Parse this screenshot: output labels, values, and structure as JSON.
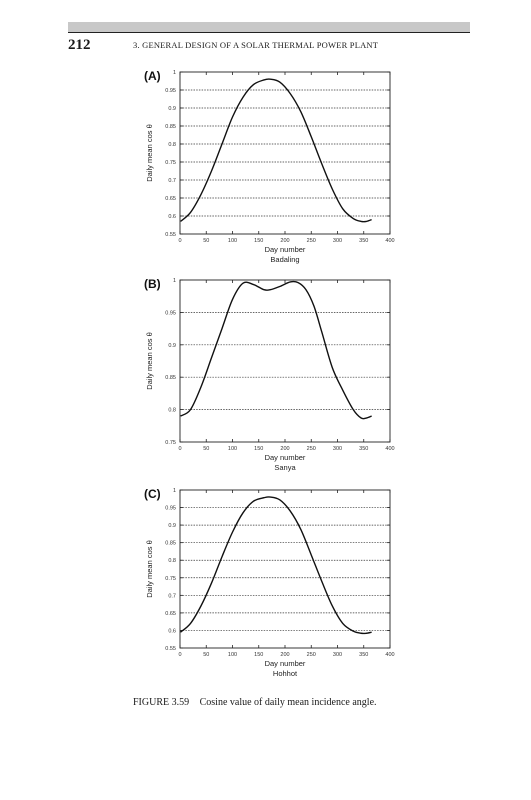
{
  "page": {
    "number": "212",
    "running_head": "3. GENERAL DESIGN OF A SOLAR THERMAL POWER PLANT"
  },
  "figure": {
    "caption_label": "FIGURE 3.59",
    "caption_text": "Cosine value of daily mean incidence angle."
  },
  "colors": {
    "curve": "#111111",
    "axis": "#222222",
    "grid": "#333333"
  },
  "chart_data": [
    {
      "type": "line",
      "panel_label": "(A)",
      "title": "Badaling",
      "xlabel": "Day number",
      "ylabel": "Daily mean cos θ",
      "xlim": [
        0,
        400
      ],
      "ylim": [
        0.55,
        1
      ],
      "xticks": [
        0,
        50,
        100,
        150,
        200,
        250,
        300,
        350,
        400
      ],
      "yticks": [
        "0.55",
        "0.6",
        "0.65",
        "0.7",
        "0.75",
        "0.8",
        "0.85",
        "0.9",
        "0.95",
        "1"
      ],
      "grid": true,
      "series": [
        {
          "x": [
            1,
            20,
            40,
            60,
            80,
            100,
            120,
            140,
            160,
            172,
            190,
            210,
            230,
            250,
            270,
            290,
            310,
            330,
            345,
            355,
            365
          ],
          "y": [
            0.585,
            0.61,
            0.66,
            0.725,
            0.8,
            0.875,
            0.93,
            0.965,
            0.978,
            0.98,
            0.972,
            0.94,
            0.89,
            0.82,
            0.745,
            0.675,
            0.62,
            0.593,
            0.585,
            0.585,
            0.59
          ]
        }
      ]
    },
    {
      "type": "line",
      "panel_label": "(B)",
      "title": "Sanya",
      "xlabel": "Day number",
      "ylabel": "Daily mean cos θ",
      "xlim": [
        0,
        400
      ],
      "ylim": [
        0.75,
        1
      ],
      "xticks": [
        0,
        50,
        100,
        150,
        200,
        250,
        300,
        350,
        400
      ],
      "yticks": [
        "0.75",
        "0.8",
        "0.85",
        "0.9",
        "0.95",
        "1"
      ],
      "grid": true,
      "series": [
        {
          "x": [
            1,
            20,
            40,
            60,
            80,
            100,
            120,
            140,
            160,
            172,
            190,
            210,
            225,
            240,
            255,
            270,
            290,
            310,
            330,
            345,
            355,
            365
          ],
          "y": [
            0.79,
            0.8,
            0.835,
            0.88,
            0.925,
            0.97,
            0.995,
            0.993,
            0.985,
            0.985,
            0.99,
            0.997,
            0.996,
            0.985,
            0.96,
            0.92,
            0.865,
            0.83,
            0.8,
            0.787,
            0.787,
            0.79
          ]
        }
      ]
    },
    {
      "type": "line",
      "panel_label": "(C)",
      "title": "Hohhot",
      "xlabel": "Day number",
      "ylabel": "Daily mean cos θ",
      "xlim": [
        0,
        400
      ],
      "ylim": [
        0.55,
        1
      ],
      "xticks": [
        0,
        50,
        100,
        150,
        200,
        250,
        300,
        350,
        400
      ],
      "yticks": [
        "0.55",
        "0.6",
        "0.65",
        "0.7",
        "0.75",
        "0.8",
        "0.85",
        "0.9",
        "0.95",
        "1"
      ],
      "grid": true,
      "series": [
        {
          "x": [
            1,
            20,
            40,
            60,
            80,
            100,
            120,
            140,
            160,
            172,
            190,
            210,
            230,
            250,
            270,
            290,
            310,
            330,
            345,
            355,
            365
          ],
          "y": [
            0.595,
            0.62,
            0.67,
            0.735,
            0.81,
            0.88,
            0.935,
            0.968,
            0.978,
            0.98,
            0.972,
            0.94,
            0.888,
            0.815,
            0.74,
            0.67,
            0.62,
            0.598,
            0.592,
            0.592,
            0.595
          ]
        }
      ]
    }
  ]
}
